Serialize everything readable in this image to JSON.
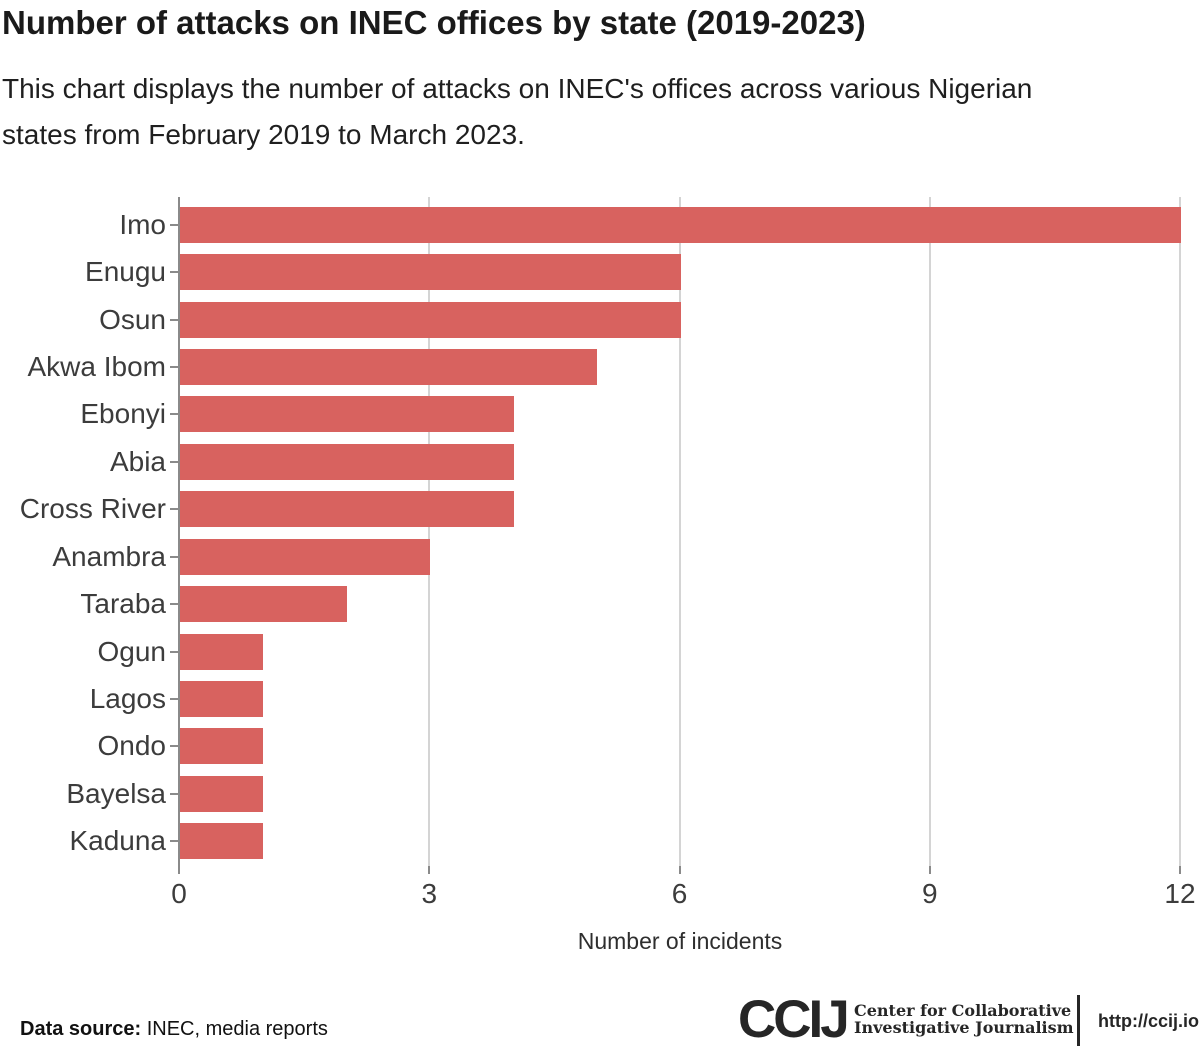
{
  "header": {
    "title": "Number of attacks on INEC offices by state (2019-2023)",
    "subtitle_lines": [
      "This chart displays the number of attacks on INEC's offices across various Nigerian",
      "states from February 2019 to March 2023."
    ]
  },
  "chart_data": {
    "type": "bar",
    "orientation": "horizontal",
    "title": "Number of attacks on INEC offices by state (2019-2023)",
    "categories": [
      "Imo",
      "Enugu",
      "Osun",
      "Akwa Ibom",
      "Ebonyi",
      "Abia",
      "Cross River",
      "Anambra",
      "Taraba",
      "Ogun",
      "Lagos",
      "Ondo",
      "Bayelsa",
      "Kaduna"
    ],
    "values": [
      12,
      6,
      6,
      5,
      4,
      4,
      4,
      3,
      2,
      1,
      1,
      1,
      1,
      1
    ],
    "xlabel": "Number of incidents",
    "ylabel": "",
    "x_ticks": [
      0,
      3,
      6,
      9,
      12
    ],
    "xlim": [
      0,
      12
    ],
    "bar_color": "#d8625f",
    "grid": "vertical-gridlines-behind-bars",
    "axis_color": "#8a8a8a",
    "gridline_color": "#d4d4d4",
    "legend": "none"
  },
  "footer": {
    "source_label": "Data source:",
    "source_value": "INEC, media reports",
    "logo_text": "CCIJ",
    "logo_tagline_lines": [
      "Center for Collaborative",
      "Investigative Journalism"
    ],
    "url": "http://ccij.io",
    "logo_color": "#262626"
  }
}
